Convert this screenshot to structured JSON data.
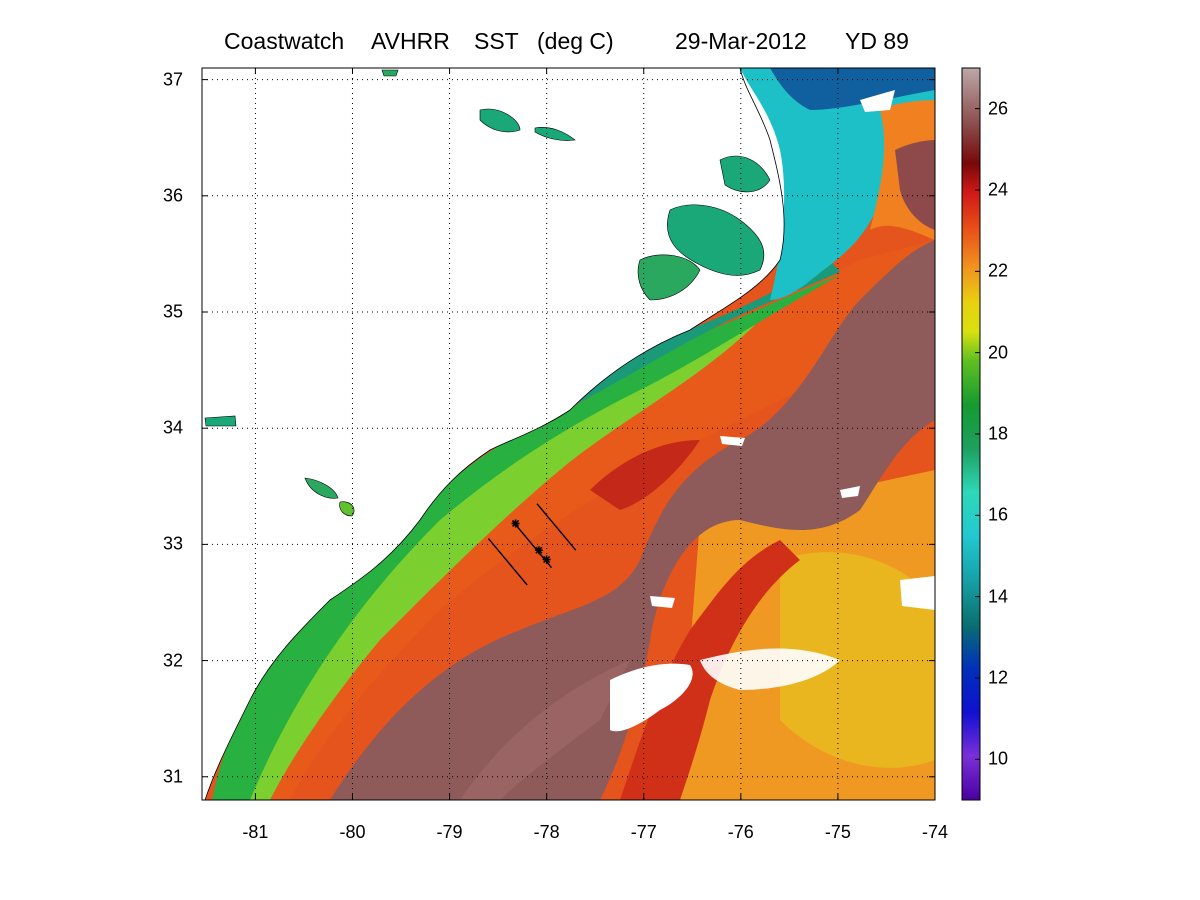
{
  "title": {
    "source": "Coastwatch",
    "sensor": "AVHRR",
    "product": "SST",
    "units": "(deg C)",
    "date": "29-Mar-2012",
    "yearday": "YD 89"
  },
  "chart_data": {
    "type": "heatmap",
    "variable": "Sea surface temperature",
    "units": "deg C",
    "xlim": [
      -81.55,
      -74
    ],
    "ylim": [
      30.8,
      37.1
    ],
    "xticks": [
      -81,
      -80,
      -79,
      -78,
      -77,
      -76,
      -75,
      -74
    ],
    "yticks": [
      31,
      32,
      33,
      34,
      35,
      36,
      37
    ],
    "x_tick_labels": [
      "-81",
      "-80",
      "-79",
      "-78",
      "-77",
      "-76",
      "-75",
      "-74"
    ],
    "y_tick_labels": [
      "31",
      "32",
      "33",
      "34",
      "35",
      "36",
      "37"
    ],
    "grid": true,
    "colorbar": {
      "clim": [
        9,
        27
      ],
      "ticks": [
        10,
        12,
        14,
        16,
        18,
        20,
        22,
        24,
        26
      ],
      "tick_labels": [
        "10",
        "12",
        "14",
        "16",
        "18",
        "20",
        "22",
        "24",
        "26"
      ]
    },
    "track_lines": [
      {
        "lon": [
          -78.6,
          -78.2
        ],
        "lat": [
          33.05,
          32.65
        ]
      },
      {
        "lon": [
          -78.1,
          -77.7
        ],
        "lat": [
          33.35,
          32.95
        ]
      },
      {
        "lon": [
          -78.35,
          -77.95
        ],
        "lat": [
          33.2,
          32.8
        ]
      }
    ],
    "markers": [
      {
        "lon": -78.32,
        "lat": 33.18
      },
      {
        "lon": -78.08,
        "lat": 32.95
      },
      {
        "lon": -78.0,
        "lat": 32.87
      }
    ]
  },
  "colors": {
    "gulf_stream": "#8e5a5a",
    "warm_offshore": "#e4451a",
    "shelf_green": "#3bb53b",
    "cold_coastal": "#22c3c6",
    "land": "#ffffff",
    "cloud": "#ffffff"
  }
}
